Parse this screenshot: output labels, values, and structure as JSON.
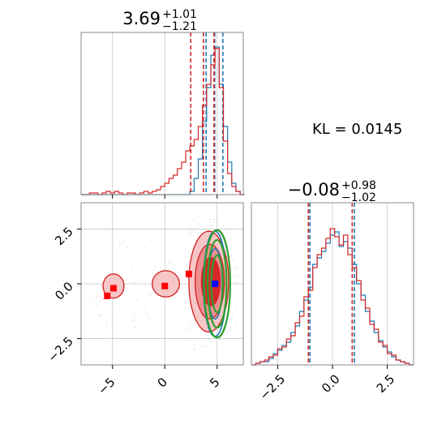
{
  "chart_data": [
    {
      "type": "histogram",
      "panel": "top-left marginal",
      "title_value": "3.69",
      "title_plus": "+1.01",
      "title_minus": "−1.21",
      "xlim": [
        -8,
        7.5
      ],
      "ylim": [
        0,
        1.0
      ],
      "grid": true,
      "x_ticks": [
        -5,
        0,
        5
      ],
      "series": [
        {
          "color": "#1f77b4",
          "bins_x": [
            -8.0,
            -7.6,
            -7.2,
            -6.8,
            -6.4,
            -6.0,
            -5.6,
            -5.2,
            -4.8,
            -4.4,
            -4.0,
            -3.6,
            -3.2,
            -2.8,
            -2.4,
            -2.0,
            -1.6,
            -1.2,
            -0.8,
            -0.4,
            0.0,
            0.4,
            0.8,
            1.2,
            1.6,
            2.0,
            2.4,
            2.8,
            3.2,
            3.6,
            4.0,
            4.4,
            4.8,
            5.2,
            5.6,
            6.0,
            6.4,
            6.8,
            7.2
          ],
          "heights": [
            0,
            0,
            0,
            0,
            0,
            0,
            0,
            0,
            0,
            0,
            0,
            0,
            0,
            0,
            0,
            0,
            0,
            0,
            0,
            0,
            0,
            0,
            0,
            0,
            0,
            0,
            0.02,
            0.1,
            0.22,
            0.45,
            0.66,
            0.86,
            0.91,
            0.68,
            0.42,
            0.2,
            0.07,
            0.02,
            0
          ],
          "quantile_lines": [
            3.95,
            4.77,
            5.55
          ]
        },
        {
          "color": "#d62728",
          "bins_x": [
            -8.0,
            -7.6,
            -7.2,
            -6.8,
            -6.4,
            -6.0,
            -5.6,
            -5.2,
            -4.8,
            -4.4,
            -4.0,
            -3.6,
            -3.2,
            -2.8,
            -2.4,
            -2.0,
            -1.6,
            -1.2,
            -0.8,
            -0.4,
            0.0,
            0.4,
            0.8,
            1.2,
            1.6,
            2.0,
            2.4,
            2.8,
            3.2,
            3.6,
            4.0,
            4.4,
            4.8,
            5.2,
            5.6,
            6.0,
            6.4,
            6.8,
            7.2
          ],
          "heights": [
            0,
            0,
            0.01,
            0.01,
            0,
            0.01,
            0.02,
            0.01,
            0.02,
            0.01,
            0,
            0.01,
            0.01,
            0,
            0.01,
            0.02,
            0.01,
            0.02,
            0.03,
            0.05,
            0.07,
            0.1,
            0.12,
            0.16,
            0.2,
            0.27,
            0.3,
            0.34,
            0.42,
            0.55,
            0.68,
            0.8,
            0.9,
            0.66,
            0.33,
            0.13,
            0.05,
            0.02,
            0
          ],
          "quantile_lines": [
            2.48,
            3.69,
            4.7
          ]
        }
      ]
    },
    {
      "type": "histogram",
      "panel": "bottom-right marginal",
      "title_value": "−0.08",
      "title_plus": "+0.98",
      "title_minus": "−1.02",
      "xlim": [
        -3.7,
        3.7
      ],
      "ylim": [
        0,
        1.0
      ],
      "grid": true,
      "x_ticks": [
        -2.5,
        0.0,
        2.5
      ],
      "x_tick_labels": [
        "−2.5",
        "0.0",
        "2.5"
      ],
      "series": [
        {
          "color": "#1f77b4",
          "bins_x": [
            -3.7,
            -3.5,
            -3.3,
            -3.1,
            -2.9,
            -2.7,
            -2.5,
            -2.3,
            -2.1,
            -1.9,
            -1.7,
            -1.5,
            -1.3,
            -1.1,
            -0.9,
            -0.7,
            -0.5,
            -0.3,
            -0.1,
            0.1,
            0.3,
            0.5,
            0.7,
            0.9,
            1.1,
            1.3,
            1.5,
            1.7,
            1.9,
            2.1,
            2.3,
            2.5,
            2.7,
            2.9,
            3.1,
            3.3,
            3.5
          ],
          "heights": [
            0,
            0.01,
            0.02,
            0.02,
            0.04,
            0.07,
            0.09,
            0.12,
            0.14,
            0.2,
            0.24,
            0.33,
            0.4,
            0.48,
            0.62,
            0.66,
            0.7,
            0.75,
            0.8,
            0.82,
            0.73,
            0.76,
            0.72,
            0.62,
            0.5,
            0.43,
            0.33,
            0.27,
            0.2,
            0.15,
            0.11,
            0.08,
            0.05,
            0.03,
            0.02,
            0.01,
            0
          ],
          "quantile_lines": [
            -1.03,
            1.0
          ]
        },
        {
          "color": "#d62728",
          "bins_x": [
            -3.7,
            -3.5,
            -3.3,
            -3.1,
            -2.9,
            -2.7,
            -2.5,
            -2.3,
            -2.1,
            -1.9,
            -1.7,
            -1.5,
            -1.3,
            -1.1,
            -0.9,
            -0.7,
            -0.5,
            -0.3,
            -0.1,
            0.1,
            0.3,
            0.5,
            0.7,
            0.9,
            1.1,
            1.3,
            1.5,
            1.7,
            1.9,
            2.1,
            2.3,
            2.5,
            2.7,
            2.9,
            3.1,
            3.3,
            3.5
          ],
          "heights": [
            0,
            0.01,
            0.02,
            0.03,
            0.05,
            0.06,
            0.1,
            0.11,
            0.16,
            0.18,
            0.26,
            0.3,
            0.42,
            0.46,
            0.6,
            0.68,
            0.72,
            0.78,
            0.84,
            0.79,
            0.74,
            0.8,
            0.68,
            0.6,
            0.52,
            0.4,
            0.35,
            0.25,
            0.22,
            0.14,
            0.12,
            0.07,
            0.06,
            0.03,
            0.02,
            0.01,
            0
          ],
          "quantile_lines": [
            -1.1,
            0.9
          ]
        }
      ]
    },
    {
      "type": "contour",
      "panel": "bottom-left joint",
      "xlim": [
        -8,
        7.5
      ],
      "ylim": [
        -3.7,
        3.7
      ],
      "grid": true,
      "x_ticks": [
        -5,
        0,
        5
      ],
      "y_ticks": [
        -2.5,
        0.0,
        2.5
      ],
      "y_tick_labels": [
        "−2.5",
        "0.0",
        "2.5"
      ],
      "red_contour_levels": [
        {
          "cx": 4.2,
          "cy": 0.1,
          "rx": 1.9,
          "ry": 2.3,
          "fill": "#f7c6c7"
        },
        {
          "cx": 4.3,
          "cy": 0.1,
          "rx": 1.4,
          "ry": 1.7,
          "fill": "#ee8f91"
        },
        {
          "cx": 4.4,
          "cy": 0.1,
          "rx": 0.9,
          "ry": 1.1,
          "fill": "#d62728"
        }
      ],
      "blue_contour_levels": [
        {
          "cx": 4.8,
          "cy": 0.0,
          "rx": 1.1,
          "ry": 2.4
        },
        {
          "cx": 4.8,
          "cy": 0.0,
          "rx": 0.7,
          "ry": 1.6
        }
      ],
      "green_contour_levels": [
        {
          "cx": 5.0,
          "cy": 0.0,
          "rx": 1.25,
          "ry": 2.45
        },
        {
          "cx": 5.0,
          "cy": 0.0,
          "rx": 0.9,
          "ry": 2.0
        },
        {
          "cx": 5.0,
          "cy": 0.0,
          "rx": 0.55,
          "ry": 1.3
        }
      ],
      "red_markers": [
        {
          "x": -5.5,
          "y": -0.55
        },
        {
          "x": -4.9,
          "y": -0.2
        },
        {
          "x": 0.0,
          "y": -0.1
        },
        {
          "x": 2.3,
          "y": 0.45
        }
      ],
      "blue_marker": {
        "x": 4.8,
        "y": 0.0
      }
    }
  ],
  "kl_label": "KL = 0.0145",
  "colors": {
    "blue": "#1f77b4",
    "red": "#d62728",
    "green": "#2ca02c",
    "grid": "#c8c8c8",
    "axis": "#888888"
  }
}
